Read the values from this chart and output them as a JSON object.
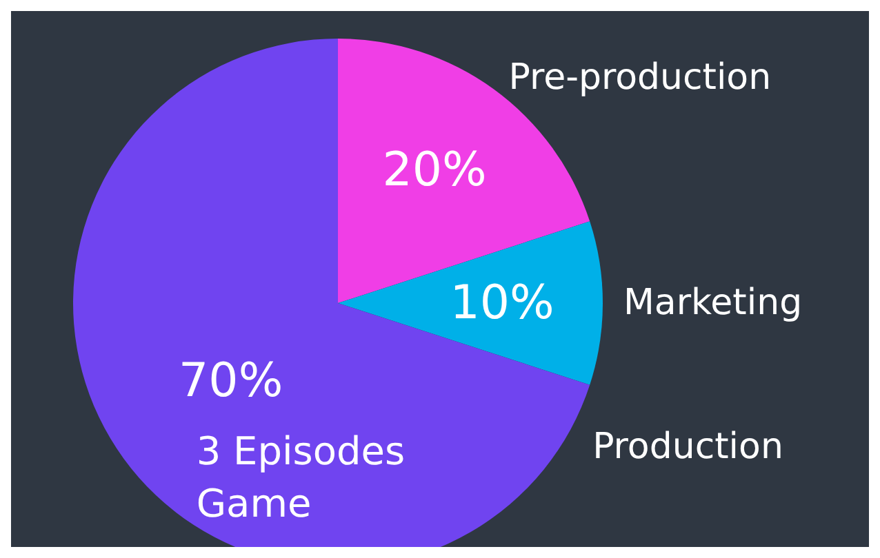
{
  "chart_data": {
    "type": "pie",
    "categories": [
      "Pre-production",
      "Marketing",
      "Production"
    ],
    "values": [
      20,
      10,
      70
    ],
    "colors": [
      "#f03ee6",
      "#00b0e8",
      "#7044f0"
    ],
    "value_labels": [
      "20%",
      "10%",
      "70%"
    ],
    "annotations": [
      "3 Episodes\nGame"
    ],
    "legend": false
  }
}
